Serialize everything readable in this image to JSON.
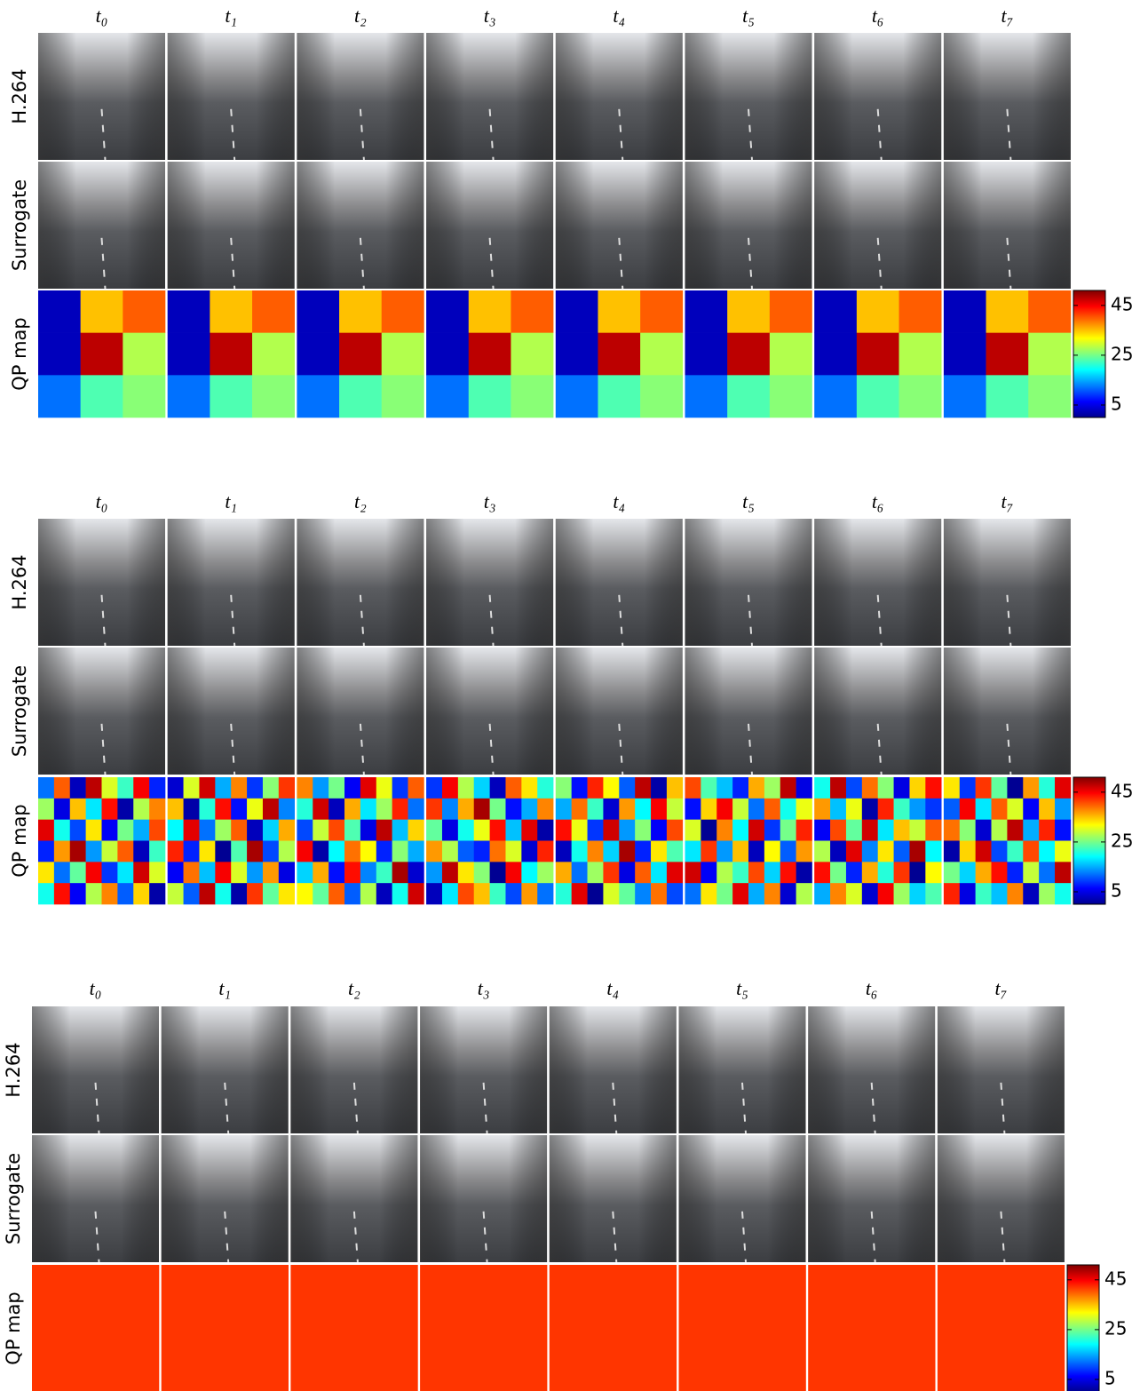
{
  "panels": [
    {
      "columns": [
        "t₀",
        "t₁",
        "t₂",
        "t₃",
        "t₄",
        "t₅",
        "t₆",
        "t₇"
      ],
      "rows": [
        "H.264",
        "Surrogate",
        "QP map"
      ],
      "colorbar": {
        "lim": [
          0,
          51
        ],
        "ticks": [
          5,
          25,
          45
        ]
      },
      "qp_maps": [
        [
          [
            3,
            35,
            40
          ],
          [
            3,
            48,
            28
          ],
          [
            12,
            23,
            26
          ]
        ],
        [
          [
            3,
            35,
            40
          ],
          [
            3,
            48,
            28
          ],
          [
            12,
            23,
            26
          ]
        ],
        [
          [
            3,
            35,
            40
          ],
          [
            3,
            48,
            28
          ],
          [
            12,
            23,
            26
          ]
        ],
        [
          [
            3,
            35,
            40
          ],
          [
            3,
            48,
            28
          ],
          [
            12,
            23,
            26
          ]
        ],
        [
          [
            3,
            35,
            40
          ],
          [
            3,
            48,
            28
          ],
          [
            12,
            23,
            26
          ]
        ],
        [
          [
            3,
            35,
            40
          ],
          [
            3,
            48,
            28
          ],
          [
            12,
            23,
            26
          ]
        ],
        [
          [
            3,
            35,
            40
          ],
          [
            3,
            48,
            28
          ],
          [
            12,
            23,
            26
          ]
        ],
        [
          [
            3,
            35,
            40
          ],
          [
            3,
            48,
            28
          ],
          [
            12,
            23,
            26
          ]
        ]
      ]
    },
    {
      "columns": [
        "t₀",
        "t₁",
        "t₂",
        "t₃",
        "t₄",
        "t₅",
        "t₆",
        "t₇"
      ],
      "rows": [
        "H.264",
        "Surrogate",
        "QP map"
      ],
      "colorbar": {
        "lim": [
          0,
          51
        ],
        "ticks": [
          5,
          25,
          45
        ]
      },
      "qp_maps": [
        [
          [
            12,
            40,
            3,
            48,
            30,
            22,
            45,
            8
          ],
          [
            27,
            5,
            35,
            18,
            44,
            2,
            28,
            38
          ],
          [
            46,
            20,
            10,
            33,
            6,
            25,
            15,
            41
          ],
          [
            8,
            37,
            49,
            14,
            29,
            40,
            3,
            22
          ],
          [
            33,
            12,
            24,
            45,
            9,
            18,
            47,
            30
          ],
          [
            20,
            44,
            6,
            28,
            38,
            11,
            34,
            2
          ]
        ],
        [
          [
            4,
            30,
            47,
            15,
            38,
            9,
            26,
            42
          ],
          [
            35,
            2,
            21,
            44,
            7,
            31,
            48,
            13
          ],
          [
            19,
            46,
            12,
            27,
            40,
            3,
            17,
            36
          ],
          [
            43,
            8,
            33,
            1,
            23,
            49,
            10,
            28
          ],
          [
            6,
            39,
            16,
            45,
            30,
            14,
            37,
            5
          ],
          [
            29,
            11,
            48,
            20,
            2,
            42,
            24,
            33
          ]
        ],
        [
          [
            38,
            14,
            25,
            6,
            46,
            31,
            9,
            40
          ],
          [
            21,
            47,
            3,
            36,
            18,
            27,
            43,
            12
          ],
          [
            10,
            29,
            41,
            23,
            5,
            48,
            16,
            34
          ],
          [
            45,
            2,
            19,
            39,
            32,
            8,
            26,
            15
          ],
          [
            17,
            36,
            7,
            44,
            13,
            22,
            49,
            4
          ],
          [
            32,
            24,
            40,
            11,
            28,
            3,
            20,
            47
          ]
        ],
        [
          [
            9,
            45,
            28,
            17,
            3,
            40,
            33,
            21
          ],
          [
            42,
            13,
            36,
            49,
            25,
            7,
            15,
            38
          ],
          [
            24,
            5,
            20,
            31,
            44,
            16,
            46,
            2
          ],
          [
            37,
            28,
            11,
            8,
            39,
            30,
            4,
            43
          ],
          [
            14,
            48,
            33,
            26,
            1,
            45,
            19,
            27
          ],
          [
            3,
            18,
            41,
            35,
            22,
            10,
            37,
            12
          ]
        ],
        [
          [
            26,
            7,
            43,
            32,
            11,
            48,
            2,
            35
          ],
          [
            15,
            39,
            22,
            4,
            37,
            19,
            45,
            29
          ],
          [
            44,
            31,
            9,
            47,
            14,
            26,
            6,
            41
          ],
          [
            3,
            20,
            38,
            17,
            49,
            8,
            33,
            23
          ],
          [
            36,
            12,
            27,
            42,
            5,
            40,
            18,
            46
          ],
          [
            21,
            46,
            1,
            30,
            24,
            13,
            39,
            10
          ]
        ],
        [
          [
            41,
            23,
            16,
            8,
            36,
            27,
            48,
            5
          ],
          [
            7,
            34,
            45,
            29,
            12,
            40,
            20,
            31
          ],
          [
            30,
            1,
            38,
            19,
            47,
            9,
            25,
            43
          ],
          [
            18,
            42,
            14,
            35,
            3,
            32,
            11,
            37
          ],
          [
            47,
            6,
            28,
            22,
            41,
            17,
            44,
            2
          ],
          [
            12,
            33,
            25,
            46,
            15,
            38,
            4,
            28
          ]
        ],
        [
          [
            20,
            48,
            10,
            39,
            26,
            5,
            34,
            44
          ],
          [
            37,
            16,
            31,
            2,
            43,
            22,
            14,
            9
          ],
          [
            6,
            41,
            24,
            47,
            18,
            35,
            29,
            40
          ],
          [
            28,
            3,
            46,
            13,
            33,
            11,
            49,
            19
          ],
          [
            44,
            25,
            8,
            36,
            21,
            42,
            1,
            32
          ],
          [
            15,
            38,
            30,
            4,
            45,
            27,
            17,
            23
          ]
        ],
        [
          [
            33,
            9,
            42,
            24,
            1,
            37,
            21,
            46
          ],
          [
            11,
            45,
            18,
            40,
            30,
            6,
            35,
            14
          ],
          [
            39,
            26,
            4,
            28,
            48,
            15,
            43,
            7
          ],
          [
            2,
            34,
            47,
            10,
            22,
            41,
            19,
            31
          ],
          [
            25,
            17,
            36,
            44,
            8,
            29,
            12,
            48
          ],
          [
            43,
            5,
            22,
            16,
            38,
            3,
            27,
            20
          ]
        ]
      ]
    },
    {
      "columns": [
        "t₀",
        "t₁",
        "t₂",
        "t₃",
        "t₄",
        "t₅",
        "t₆",
        "t₇"
      ],
      "rows": [
        "H.264",
        "Surrogate",
        "QP map"
      ],
      "colorbar": {
        "lim": [
          0,
          51
        ],
        "ticks": [
          5,
          25,
          45
        ]
      },
      "qp_maps": [
        [
          [
            42
          ]
        ],
        [
          [
            42
          ]
        ],
        [
          [
            42
          ]
        ],
        [
          [
            42
          ]
        ],
        [
          [
            42
          ]
        ],
        [
          [
            42
          ]
        ],
        [
          [
            42
          ]
        ],
        [
          [
            42
          ]
        ]
      ]
    }
  ]
}
